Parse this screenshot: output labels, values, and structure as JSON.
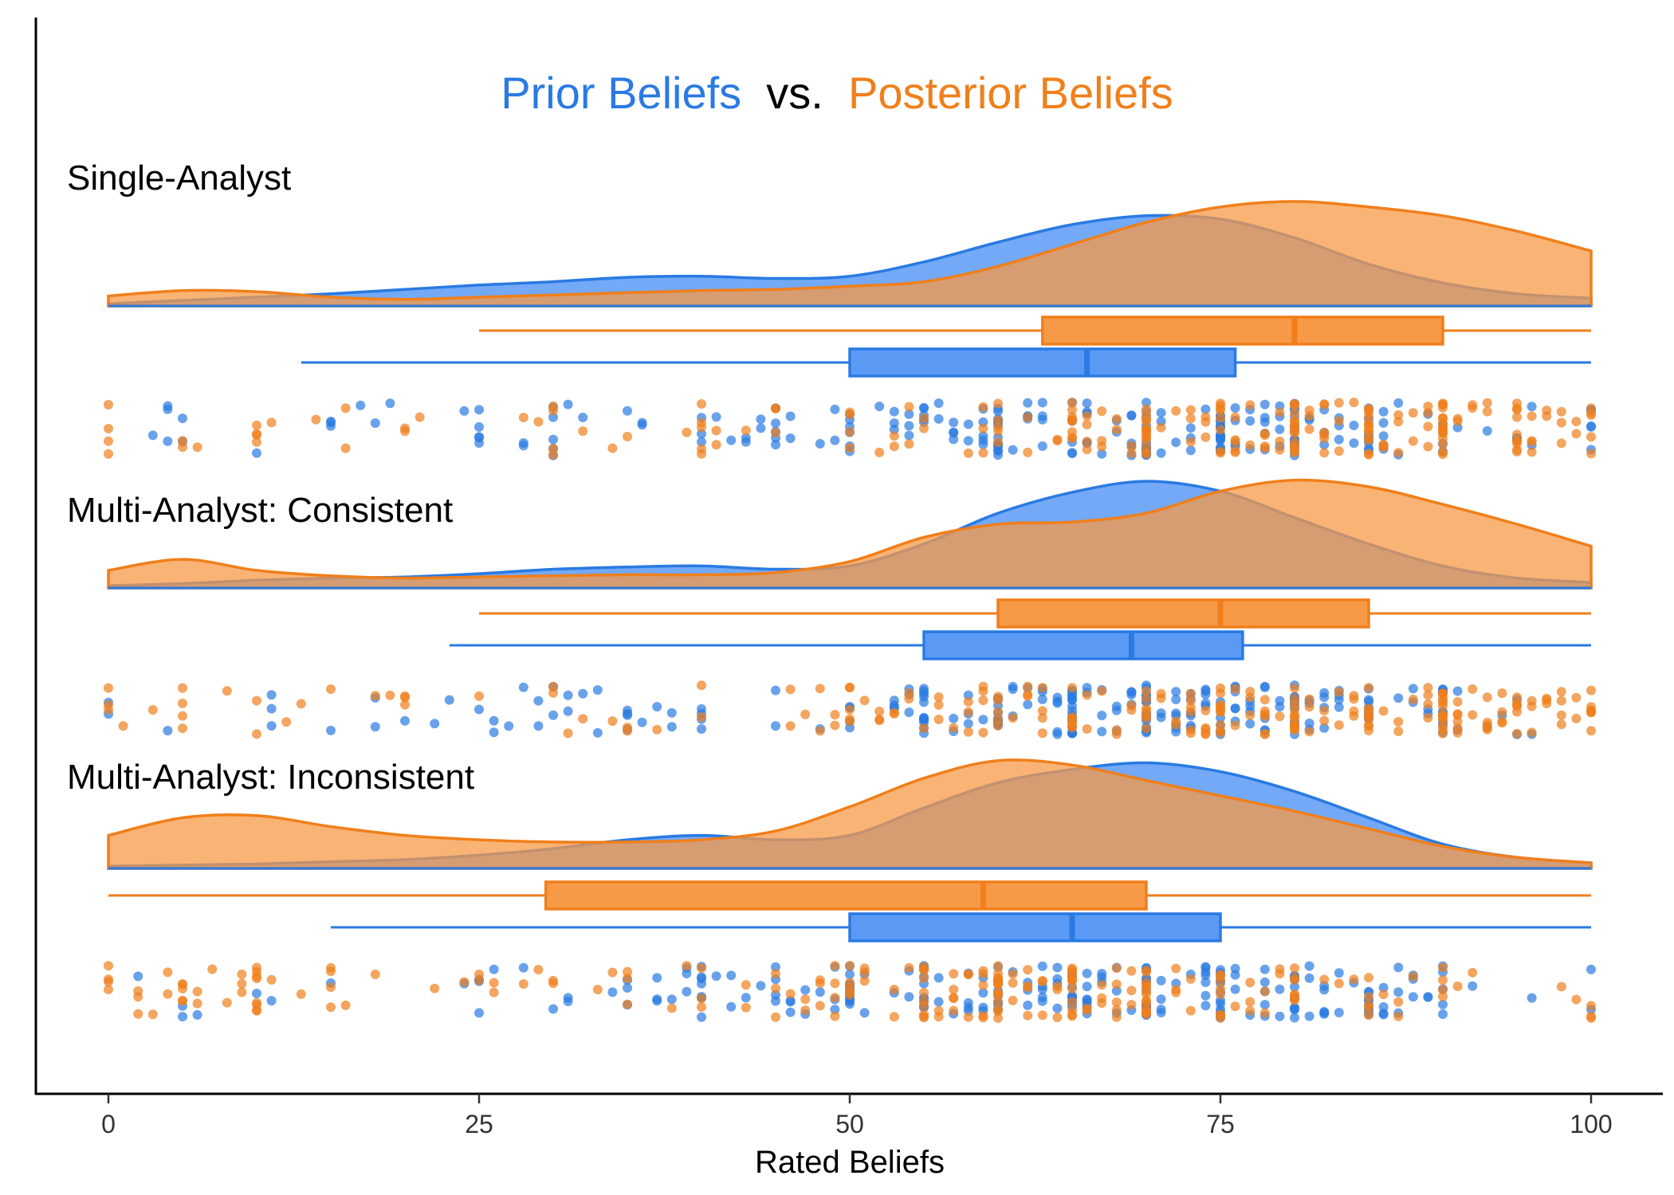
{
  "chart_data": {
    "type": "raincloud",
    "title_parts": [
      {
        "text": "Prior Beliefs",
        "role": "prior"
      },
      {
        "text": " vs. ",
        "role": "plain"
      },
      {
        "text": "Posterior Beliefs",
        "role": "posterior"
      }
    ],
    "xlabel": "Rated Beliefs",
    "xlim": [
      0,
      100
    ],
    "xticks": [
      0,
      25,
      50,
      75,
      100
    ],
    "grid": false,
    "legend": "none (title words colored by series)",
    "colors": {
      "prior": "#2a7ae2",
      "posterior": "#f07f1b",
      "prior_fill": "#5a9af5",
      "posterior_fill": "#f79a47",
      "overlap_fill": "#c48f6e",
      "text": "#000000",
      "tick_text": "#333333"
    },
    "series": [
      "Prior Beliefs",
      "Posterior Beliefs"
    ],
    "panels": [
      {
        "label": "Single-Analyst",
        "density": {
          "x": [
            0,
            5,
            10,
            15,
            20,
            25,
            30,
            35,
            40,
            45,
            50,
            55,
            60,
            65,
            70,
            75,
            80,
            85,
            90,
            95,
            100
          ],
          "prior": [
            0.02,
            0.05,
            0.08,
            0.11,
            0.15,
            0.19,
            0.22,
            0.26,
            0.27,
            0.25,
            0.27,
            0.4,
            0.58,
            0.74,
            0.82,
            0.79,
            0.62,
            0.38,
            0.21,
            0.11,
            0.07
          ],
          "posterior": [
            0.09,
            0.14,
            0.13,
            0.08,
            0.06,
            0.08,
            0.1,
            0.12,
            0.14,
            0.15,
            0.18,
            0.22,
            0.36,
            0.56,
            0.76,
            0.9,
            0.95,
            0.9,
            0.82,
            0.68,
            0.5
          ]
        },
        "boxplot": {
          "posterior": {
            "min": 25,
            "q1": 63,
            "median": 80,
            "q3": 90,
            "max": 100
          },
          "prior": {
            "min": 13,
            "q1": 50,
            "median": 66,
            "q3": 76,
            "max": 100
          }
        }
      },
      {
        "label": "Multi-Analyst: Consistent",
        "density": {
          "x": [
            0,
            5,
            10,
            15,
            20,
            25,
            30,
            35,
            40,
            45,
            50,
            55,
            60,
            65,
            70,
            75,
            80,
            85,
            90,
            95,
            100
          ],
          "prior": [
            0.02,
            0.04,
            0.07,
            0.09,
            0.1,
            0.13,
            0.17,
            0.19,
            0.2,
            0.17,
            0.2,
            0.4,
            0.68,
            0.87,
            0.97,
            0.88,
            0.64,
            0.4,
            0.2,
            0.09,
            0.05
          ],
          "posterior": [
            0.16,
            0.26,
            0.16,
            0.11,
            0.09,
            0.1,
            0.11,
            0.12,
            0.12,
            0.14,
            0.24,
            0.46,
            0.58,
            0.6,
            0.68,
            0.88,
            0.98,
            0.92,
            0.76,
            0.58,
            0.38
          ]
        },
        "boxplot": {
          "posterior": {
            "min": 25,
            "q1": 60,
            "median": 75,
            "q3": 85,
            "max": 100
          },
          "prior": {
            "min": 23,
            "q1": 55,
            "median": 69,
            "q3": 76.5,
            "max": 100
          }
        }
      },
      {
        "label": "Multi-Analyst: Inconsistent",
        "density": {
          "x": [
            0,
            5,
            10,
            15,
            20,
            25,
            30,
            35,
            40,
            45,
            50,
            55,
            60,
            65,
            70,
            75,
            80,
            85,
            90,
            95,
            100
          ],
          "prior": [
            0.02,
            0.03,
            0.04,
            0.06,
            0.08,
            0.12,
            0.18,
            0.26,
            0.3,
            0.26,
            0.3,
            0.55,
            0.78,
            0.9,
            0.96,
            0.88,
            0.7,
            0.46,
            0.22,
            0.1,
            0.05
          ],
          "posterior": [
            0.3,
            0.46,
            0.48,
            0.38,
            0.3,
            0.26,
            0.24,
            0.24,
            0.26,
            0.34,
            0.56,
            0.82,
            0.98,
            0.94,
            0.8,
            0.66,
            0.52,
            0.36,
            0.2,
            0.1,
            0.05
          ]
        },
        "boxplot": {
          "posterior": {
            "min": 0,
            "q1": 29.5,
            "median": 59,
            "q3": 70,
            "max": 100
          },
          "prior": {
            "min": 15,
            "q1": 50,
            "median": 65,
            "q3": 75,
            "max": 100
          }
        }
      }
    ]
  }
}
